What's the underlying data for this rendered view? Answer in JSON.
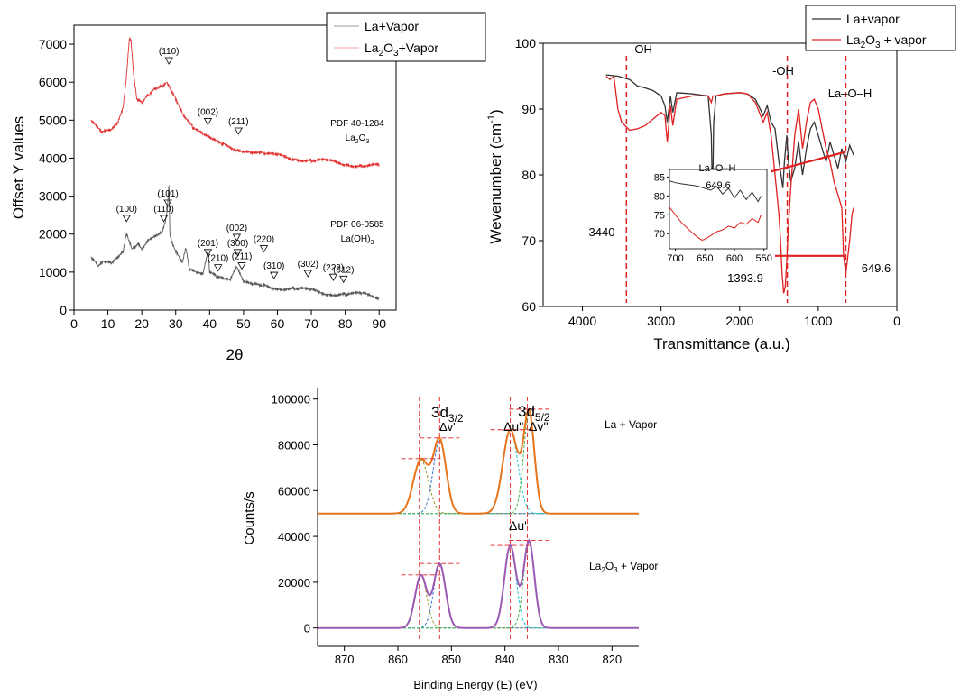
{
  "colors": {
    "xrd_la": "#555555",
    "xrd_la2o3": "#e03030",
    "ftir_la": "#333333",
    "ftir_la2o3": "#e02020",
    "xps_la": "#e8741a",
    "xps_la2o3": "#9b59b6",
    "xps_fit_blue": "#3a7bd5",
    "xps_fit_cyan": "#1fc8d8",
    "xps_fit_green": "#4caf50",
    "xps_fit_olive": "#8f9a2a",
    "annot_red": "#e02020"
  },
  "chart_data": [
    {
      "type": "line",
      "panel": "xrd",
      "xlabel": "2θ",
      "ylabel": "Offset Y values",
      "xlim": [
        0,
        95
      ],
      "ylim": [
        0,
        7500
      ],
      "xticks": [
        0,
        10,
        20,
        30,
        40,
        50,
        60,
        70,
        80,
        90
      ],
      "yticks": [
        0,
        1000,
        2000,
        3000,
        4000,
        5000,
        6000,
        7000
      ],
      "legend": [
        "La+Vapor",
        "La2O3+Vapor"
      ],
      "legend_display": [
        {
          "text": "La+Vapor",
          "sub": "",
          "tail": ""
        },
        {
          "text": "La",
          "sub": "2",
          "tail": "O",
          "sub2": "3",
          "tail2": "+Vapor"
        }
      ],
      "legend_placement": "top-right",
      "series": [
        {
          "name": "La2O3+Vapor",
          "x": [
            5,
            8,
            11,
            13,
            14.5,
            15.5,
            16.3,
            16.8,
            17.5,
            18.5,
            20,
            22,
            24,
            26,
            27.5,
            28.5,
            30,
            32,
            35,
            38,
            41,
            44,
            48,
            52,
            56,
            60,
            65,
            70,
            75,
            80,
            85,
            90
          ],
          "y": [
            5000,
            4650,
            4700,
            4900,
            5300,
            6100,
            7100,
            7050,
            6300,
            5600,
            5500,
            5700,
            5850,
            5900,
            6000,
            5850,
            5600,
            5200,
            4800,
            4600,
            4450,
            4350,
            4250,
            4200,
            4100,
            4050,
            4000,
            3950,
            3900,
            3850,
            3820,
            3780
          ]
        },
        {
          "name": "La+Vapor",
          "x": [
            5,
            7,
            9,
            11,
            13,
            14.5,
            15.5,
            16,
            17,
            18,
            19,
            20,
            22,
            24,
            26,
            27,
            27.5,
            28,
            28.3,
            29,
            30,
            32,
            33,
            34,
            36,
            38,
            39.5,
            40,
            42,
            44,
            46,
            48,
            50,
            53,
            56,
            60,
            65,
            70,
            75,
            80,
            85,
            90
          ],
          "y": [
            1400,
            1150,
            1250,
            1200,
            1350,
            1500,
            2000,
            1900,
            1650,
            1700,
            1800,
            1650,
            1900,
            2000,
            2100,
            2400,
            2700,
            3300,
            2000,
            1700,
            1500,
            1200,
            1600,
            1050,
            950,
            900,
            1500,
            1000,
            850,
            800,
            750,
            1100,
            700,
            650,
            650,
            600,
            550,
            500,
            450,
            420,
            400,
            350
          ]
        }
      ],
      "peaks_la2o3": [
        {
          "label": "(110)",
          "x": 28,
          "y": 6550
        },
        {
          "label": "(002)",
          "x": 39.5,
          "y": 4950
        },
        {
          "label": "(211)",
          "x": 48.5,
          "y": 4700
        }
      ],
      "peaks_laoh": [
        {
          "label": "(100)",
          "x": 15.5,
          "y": 2400
        },
        {
          "label": "(110)",
          "x": 26.5,
          "y": 2400
        },
        {
          "label": "(101)",
          "x": 27.7,
          "y": 2800
        },
        {
          "label": "(201)",
          "x": 39.5,
          "y": 1500
        },
        {
          "label": "(210)",
          "x": 42.5,
          "y": 1100
        },
        {
          "label": "(002)",
          "x": 48,
          "y": 1900
        },
        {
          "label": "(300)",
          "x": 48.3,
          "y": 1500
        },
        {
          "label": "(211)",
          "x": 49.5,
          "y": 1150
        },
        {
          "label": "(220)",
          "x": 56,
          "y": 1600
        },
        {
          "label": "(310)",
          "x": 59,
          "y": 900
        },
        {
          "label": "(302)",
          "x": 69,
          "y": 950
        },
        {
          "label": "(222)",
          "x": 76.5,
          "y": 850
        },
        {
          "label": "(312)",
          "x": 79.5,
          "y": 800
        }
      ],
      "ref_la2o3": {
        "line1": "PDF 40-1284",
        "formula": "La",
        "sub": "2",
        "tail": "O",
        "sub2": "3",
        "raw": "La2O3"
      },
      "ref_laoh": {
        "line1": "PDF 06-0585",
        "formula": "La(OH)",
        "sub": "3",
        "raw": "La(OH)3"
      }
    },
    {
      "type": "line",
      "panel": "ftir",
      "xlabel": "Transmittance (a.u.)",
      "ylabel": "Wevenumber (cm-1)",
      "ylabel_parts": {
        "main": "Wevenumber (cm",
        "sup": "-1",
        "tail": ")"
      },
      "xlim": [
        4500,
        0
      ],
      "ylim": [
        60,
        100
      ],
      "xticks": [
        4000,
        3000,
        2000,
        1000,
        0
      ],
      "yticks": [
        60,
        70,
        80,
        90,
        100
      ],
      "legend": [
        "La+vapor",
        "La2O3 + vapor"
      ],
      "legend_display": [
        {
          "text": "La+vapor"
        },
        {
          "text": "La",
          "sub": "2",
          "tail": "O",
          "sub2": "3",
          "tail2": " + vapor"
        }
      ],
      "legend_placement": "top-right",
      "series": [
        {
          "name": "La+vapor",
          "x": [
            3700,
            3550,
            3400,
            3300,
            3200,
            3100,
            3000,
            2950,
            2920,
            2880,
            2850,
            2800,
            2600,
            2400,
            2360,
            2345,
            2330,
            2300,
            2200,
            2000,
            1900,
            1800,
            1700,
            1650,
            1600,
            1550,
            1500,
            1480,
            1450,
            1430,
            1400,
            1380,
            1350,
            1300,
            1250,
            1200,
            1150,
            1100,
            1050,
            1000,
            950,
            900,
            850,
            800,
            750,
            700,
            650,
            600,
            550
          ],
          "y": [
            95.2,
            95.0,
            94.5,
            93.5,
            93.2,
            92.8,
            92.0,
            90.5,
            88.0,
            92.0,
            89.5,
            92.5,
            92.3,
            92.0,
            86.0,
            75.8,
            88.0,
            92.0,
            92.3,
            92.5,
            92.3,
            91.5,
            89.0,
            90.5,
            88.0,
            87.0,
            82.0,
            80.5,
            78.0,
            82.0,
            86.0,
            82.0,
            79.0,
            81.0,
            85.0,
            80.0,
            84.0,
            87.0,
            88.0,
            86.0,
            84.0,
            82.0,
            85.0,
            83.0,
            81.0,
            84.0,
            82.0,
            84.5,
            83.0
          ]
        },
        {
          "name": "La2O3 + vapor",
          "x": [
            3700,
            3650,
            3600,
            3550,
            3500,
            3400,
            3300,
            3200,
            3100,
            3000,
            2950,
            2920,
            2880,
            2850,
            2800,
            2600,
            2400,
            2360,
            2340,
            2300,
            2200,
            2000,
            1900,
            1800,
            1700,
            1650,
            1600,
            1550,
            1500,
            1480,
            1460,
            1440,
            1420,
            1400,
            1380,
            1350,
            1300,
            1250,
            1200,
            1150,
            1100,
            1050,
            1000,
            950,
            900,
            850,
            800,
            750,
            700,
            680,
            650,
            620,
            600,
            570,
            550
          ],
          "y": [
            95.0,
            94.5,
            95.0,
            90.0,
            88.0,
            86.8,
            87.0,
            87.5,
            88.5,
            89.5,
            89.0,
            85.0,
            90.5,
            87.5,
            91.5,
            92.0,
            92.0,
            91.0,
            92.0,
            92.0,
            92.3,
            92.5,
            92.3,
            91.0,
            88.0,
            89.5,
            86.0,
            80.0,
            74.0,
            70.0,
            65.0,
            62.0,
            63.0,
            67.0,
            72.0,
            78.0,
            86.0,
            90.0,
            84.0,
            88.0,
            91.0,
            91.5,
            90.0,
            87.0,
            84.0,
            82.0,
            79.0,
            77.0,
            75.0,
            68.0,
            65.0,
            68.0,
            70.0,
            74.0,
            75.0
          ]
        }
      ],
      "annotations": {
        "oh1": "-OH",
        "oh2": "-OH",
        "laoh": "La–O–H",
        "v3440": "3440",
        "v1393": "1393.9",
        "v649": "649.6"
      },
      "vlines": [
        3440,
        1393.9,
        649.6
      ],
      "zoom_lines": {
        "upper": [
          [
            1600,
            80.5
          ],
          [
            650,
            83.5
          ]
        ],
        "lower": [
          [
            1550,
            67.7
          ],
          [
            650,
            67.7
          ]
        ]
      },
      "inset": {
        "xlim": [
          710,
          545
        ],
        "ylim": [
          66,
          87
        ],
        "xticks": [
          700,
          650,
          600,
          550
        ],
        "yticks": [
          70,
          75,
          80,
          85
        ],
        "label_laoh": "La–O–H",
        "label_val": "649.6",
        "series": [
          {
            "name": "La+vapor",
            "x": [
              710,
              700,
              690,
              680,
              670,
              660,
              650,
              640,
              630,
              620,
              610,
              600,
              590,
              580,
              570,
              560,
              555
            ],
            "y": [
              84,
              83.5,
              83.2,
              83.0,
              82.8,
              82.5,
              82.0,
              81.5,
              82.5,
              80.5,
              82.0,
              79.5,
              81.5,
              79.0,
              81.0,
              78.5,
              80.0
            ]
          },
          {
            "name": "La2O3 + vapor",
            "x": [
              710,
              700,
              690,
              680,
              670,
              660,
              655,
              650,
              645,
              640,
              630,
              620,
              610,
              600,
              590,
              580,
              570,
              560,
              555
            ],
            "y": [
              77.0,
              75.0,
              73.0,
              71.5,
              70.0,
              68.8,
              68.3,
              68.5,
              69.0,
              69.5,
              70.5,
              71.0,
              72.0,
              71.5,
              73.0,
              72.5,
              74.0,
              73.0,
              75.0
            ]
          }
        ]
      }
    },
    {
      "type": "line",
      "panel": "xps",
      "xlabel": "Binding Energy (E) (eV)",
      "ylabel": "Counts/s",
      "xlim": [
        875,
        815
      ],
      "ylim": [
        -8000,
        105000
      ],
      "xticks": [
        870,
        860,
        850,
        840,
        830,
        820
      ],
      "yticks": [
        0,
        20000,
        40000,
        60000,
        80000,
        100000
      ],
      "peak_labels": {
        "d32_main": "3d",
        "d32_sub": "3/2",
        "d52_main": "3d",
        "d52_sub": "5/2",
        "dv_prime": "Δv'",
        "du_dbl": "Δu''",
        "dv_dbl": "Δv''",
        "du_prime": "Δu'"
      },
      "series_labels": {
        "la": "La + Vapor",
        "la2o3_main": "La",
        "la2o3_sub": "2",
        "la2o3_tail": "O",
        "la2o3_sub2": "3",
        "la2o3_tail2": " + Vapor"
      },
      "series": [
        {
          "name": "La + Vapor",
          "baseline": 50000,
          "peaks": [
            {
              "center": 855.7,
              "height": 23500,
              "width": 1.4
            },
            {
              "center": 852.2,
              "height": 32000,
              "width": 1.2
            },
            {
              "center": 839.0,
              "height": 36500,
              "width": 1.4
            },
            {
              "center": 835.5,
              "height": 44000,
              "width": 1.0
            }
          ]
        },
        {
          "name": "La2O3 + Vapor",
          "baseline": 0,
          "peaks": [
            {
              "center": 855.7,
              "height": 23000,
              "width": 1.1
            },
            {
              "center": 852.2,
              "height": 28000,
              "width": 1.1
            },
            {
              "center": 839.0,
              "height": 36000,
              "width": 1.1
            },
            {
              "center": 835.5,
              "height": 38000,
              "width": 1.0
            }
          ]
        }
      ],
      "vlines": [
        856,
        852.2,
        839,
        835.8
      ]
    }
  ]
}
